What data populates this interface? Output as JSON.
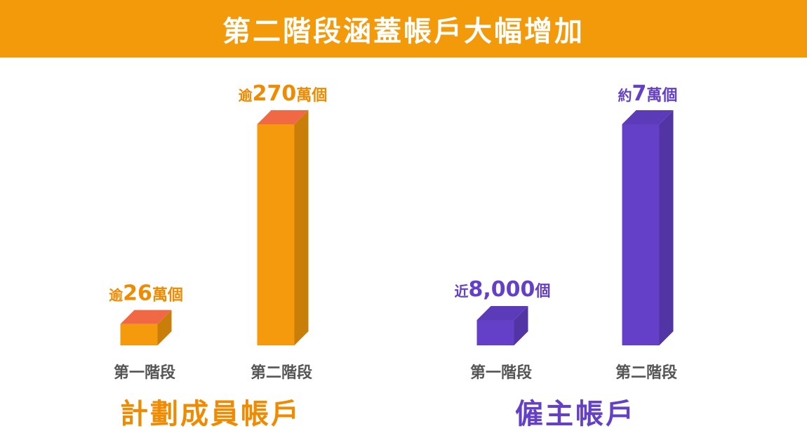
{
  "header": {
    "title": "第二階段涵蓋帳戶大幅增加"
  },
  "colors": {
    "header_bg": "#f39a0b",
    "orange": "#f59a0c",
    "purple": "#6440c8",
    "axis_label": "#555555"
  },
  "chart_data": [
    {
      "type": "bar",
      "title": "計劃成員帳戶",
      "categories": [
        "第一階段",
        "第二階段"
      ],
      "values": [
        260000,
        2700000
      ],
      "value_labels": [
        {
          "prefix": "逾",
          "number": "26",
          "suffix": "萬個"
        },
        {
          "prefix": "逾",
          "number": "270",
          "suffix": "萬個"
        }
      ],
      "color": "#f59a0c",
      "ylim": [
        0,
        2700000
      ],
      "grid": false
    },
    {
      "type": "bar",
      "title": "僱主帳戶",
      "categories": [
        "第一階段",
        "第二階段"
      ],
      "values": [
        8000,
        70000
      ],
      "value_labels": [
        {
          "prefix": "近",
          "number": "8,000",
          "suffix": "個"
        },
        {
          "prefix": "約",
          "number": "7",
          "suffix": "萬個"
        }
      ],
      "color": "#6440c8",
      "ylim": [
        0,
        70000
      ],
      "grid": false
    }
  ]
}
